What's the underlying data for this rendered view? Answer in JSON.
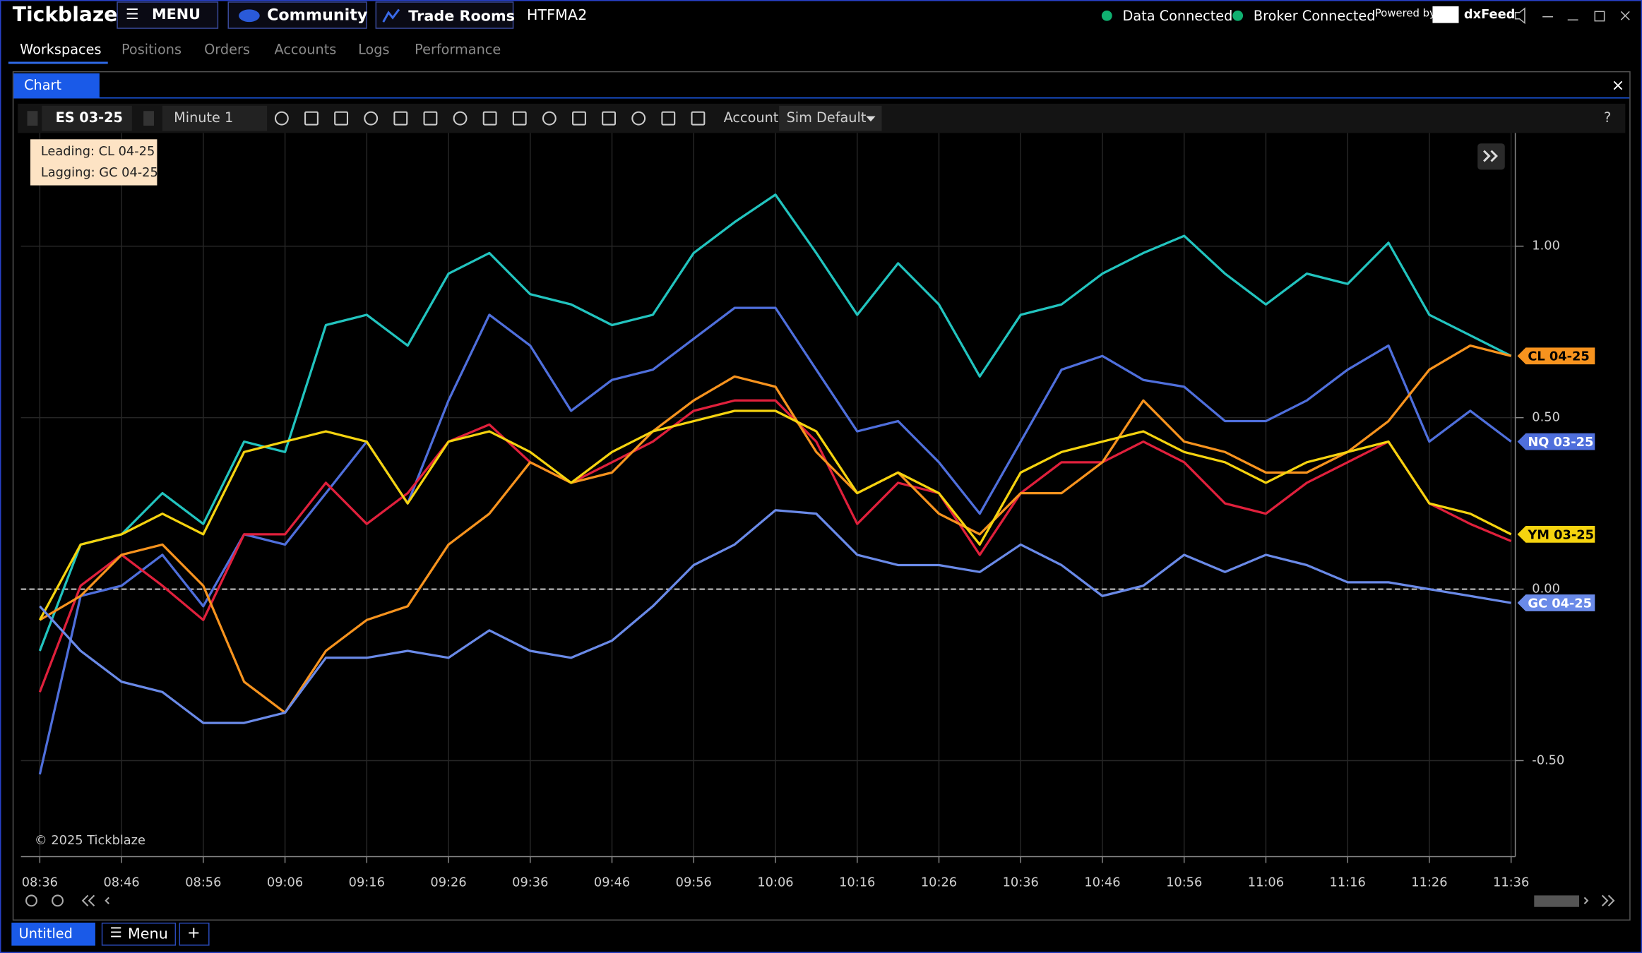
{
  "app": {
    "brand": "Tickblaze",
    "menu": "MENU",
    "community": "Community",
    "trade_rooms": "Trade Rooms",
    "workspace_code": "HTFMA2",
    "status": [
      "Data Connected",
      "Broker Connected"
    ],
    "powered_by": "Powered by",
    "feed": "dxFeed"
  },
  "tabs": [
    "Workspaces",
    "Positions",
    "Orders",
    "Accounts",
    "Logs",
    "Performance"
  ],
  "panel": {
    "title": "Chart"
  },
  "toolbar": {
    "symbol": "ES 03-25",
    "interval": "Minute 1",
    "account_label": "Account:",
    "account": "Sim Default",
    "help": "?"
  },
  "info": {
    "leading": "Leading: CL 04-25",
    "lagging": "Lagging: GC 04-25"
  },
  "copyright": "© 2025 Tickblaze",
  "bottom": {
    "workspace": "Untitled",
    "menu": "Menu",
    "add": "+"
  },
  "chart_data": {
    "type": "line",
    "categories": [
      "08:36",
      null,
      "08:46",
      null,
      "08:56",
      null,
      "09:06",
      null,
      "09:16",
      null,
      "09:26",
      null,
      "09:36",
      null,
      "09:46",
      null,
      "09:56",
      null,
      "10:06",
      null,
      "10:16",
      null,
      "10:26",
      null,
      "10:36",
      null,
      "10:46",
      null,
      "10:56",
      null,
      "11:06",
      null,
      "11:16",
      null,
      "11:26",
      null,
      "11:36"
    ],
    "series": [
      {
        "color": "#22c4bf",
        "values": [
          -0.18,
          0.13,
          0.16,
          0.28,
          0.19,
          0.43,
          0.4,
          0.77,
          0.8,
          0.71,
          0.92,
          0.98,
          0.86,
          0.83,
          0.77,
          0.8,
          0.98,
          1.07,
          1.15,
          0.98,
          0.8,
          0.95,
          0.83,
          0.62,
          0.8,
          0.83,
          0.92,
          0.98,
          1.03,
          0.92,
          0.83,
          0.92,
          0.89,
          1.01,
          0.8,
          0.74,
          0.68
        ]
      },
      {
        "name": "NQ 03-25",
        "color": "#4f6fdc",
        "values": [
          -0.54,
          -0.02,
          0.01,
          0.1,
          -0.05,
          0.16,
          0.13,
          0.28,
          0.43,
          0.25,
          0.55,
          0.8,
          0.71,
          0.52,
          0.61,
          0.64,
          0.73,
          0.82,
          0.82,
          0.64,
          0.46,
          0.49,
          0.37,
          0.22,
          0.43,
          0.64,
          0.68,
          0.61,
          0.59,
          0.49,
          0.49,
          0.55,
          0.64,
          0.71,
          0.43,
          0.52,
          0.43
        ]
      },
      {
        "color": "#e0203c",
        "values": [
          -0.3,
          0.01,
          0.1,
          0.01,
          -0.09,
          0.16,
          0.16,
          0.31,
          0.19,
          0.28,
          0.43,
          0.48,
          0.37,
          0.31,
          0.37,
          0.43,
          0.52,
          0.55,
          0.55,
          0.43,
          0.19,
          0.31,
          0.28,
          0.1,
          0.28,
          0.37,
          0.37,
          0.43,
          0.37,
          0.25,
          0.22,
          0.31,
          0.37,
          0.43,
          0.25,
          0.19,
          0.14
        ]
      },
      {
        "name": "CL 04-25",
        "color": "#f7931e",
        "values": [
          -0.09,
          -0.02,
          0.1,
          0.13,
          0.01,
          -0.27,
          -0.36,
          -0.18,
          -0.09,
          -0.05,
          0.13,
          0.22,
          0.37,
          0.31,
          0.34,
          0.46,
          0.55,
          0.62,
          0.59,
          0.4,
          0.28,
          0.34,
          0.22,
          0.16,
          0.28,
          0.28,
          0.37,
          0.55,
          0.43,
          0.4,
          0.34,
          0.34,
          0.4,
          0.49,
          0.64,
          0.71,
          0.68
        ]
      },
      {
        "name": "YM 03-25",
        "color": "#f5d30f",
        "values": [
          -0.09,
          0.13,
          0.16,
          0.22,
          0.16,
          0.4,
          0.43,
          0.46,
          0.43,
          0.25,
          0.43,
          0.46,
          0.4,
          0.31,
          0.4,
          0.46,
          0.49,
          0.52,
          0.52,
          0.46,
          0.28,
          0.34,
          0.28,
          0.13,
          0.34,
          0.4,
          0.43,
          0.46,
          0.4,
          0.37,
          0.31,
          0.37,
          0.4,
          0.43,
          0.25,
          0.22,
          0.16
        ]
      },
      {
        "name": "GC 04-25",
        "color": "#6a8ae8",
        "values": [
          -0.05,
          -0.18,
          -0.27,
          -0.3,
          -0.39,
          -0.39,
          -0.36,
          -0.2,
          -0.2,
          -0.18,
          -0.2,
          -0.12,
          -0.18,
          -0.2,
          -0.15,
          -0.05,
          0.07,
          0.13,
          0.23,
          0.22,
          0.1,
          0.07,
          0.07,
          0.05,
          0.13,
          0.07,
          -0.02,
          0.01,
          0.1,
          0.05,
          0.1,
          0.07,
          0.02,
          0.02,
          0.0,
          -0.02,
          -0.04
        ]
      }
    ],
    "ylim": [
      -0.78,
      1.33
    ],
    "yticks": [
      {
        "value": -0.5,
        "label": "-0.50"
      },
      {
        "value": 0,
        "label": "0.00"
      },
      {
        "value": 0.5,
        "label": "0.50"
      },
      {
        "value": 1,
        "label": "1.00"
      }
    ],
    "grid": true
  }
}
